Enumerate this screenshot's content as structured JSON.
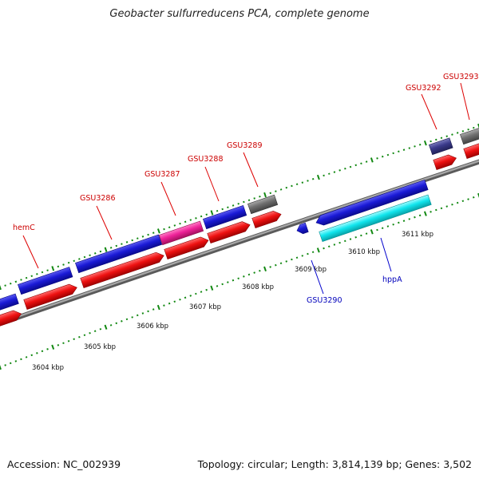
{
  "title": "Geobacter sulfurreducens PCA, complete genome",
  "footer": {
    "accession": "Accession: NC_002939",
    "topology": "Topology: circular; Length: 3,814,139 bp; Genes: 3,502"
  },
  "scale_labels": [
    {
      "text": "3604 kbp"
    },
    {
      "text": "3605 kbp"
    },
    {
      "text": "3606 kbp"
    },
    {
      "text": "3607 kbp"
    },
    {
      "text": "3608 kbp"
    },
    {
      "text": "3609 kbp"
    },
    {
      "text": "3610 kbp"
    },
    {
      "text": "3611 kbp"
    }
  ],
  "gene_labels": [
    {
      "text": "hemC",
      "strand": "forward"
    },
    {
      "text": "GSU3286",
      "strand": "forward"
    },
    {
      "text": "GSU3287",
      "strand": "forward"
    },
    {
      "text": "GSU3288",
      "strand": "forward"
    },
    {
      "text": "GSU3289",
      "strand": "forward"
    },
    {
      "text": "GSU3292",
      "strand": "forward"
    },
    {
      "text": "GSU3293",
      "strand": "forward"
    },
    {
      "text": "GSU3290",
      "strand": "reverse"
    },
    {
      "text": "hppA",
      "strand": "reverse"
    }
  ],
  "colors": {
    "forward_label": "#cc0000",
    "reverse_label": "#0000bb",
    "backbone": "#8c8c8c",
    "tick": "#118811",
    "gene_blue": "#1a1ad6",
    "gene_red": "#ee1111",
    "gene_magenta": "#ee2299",
    "gene_gray": "#6f6f6f",
    "gene_navy": "#3a3a8a",
    "gene_cyan": "#11e6ee"
  }
}
